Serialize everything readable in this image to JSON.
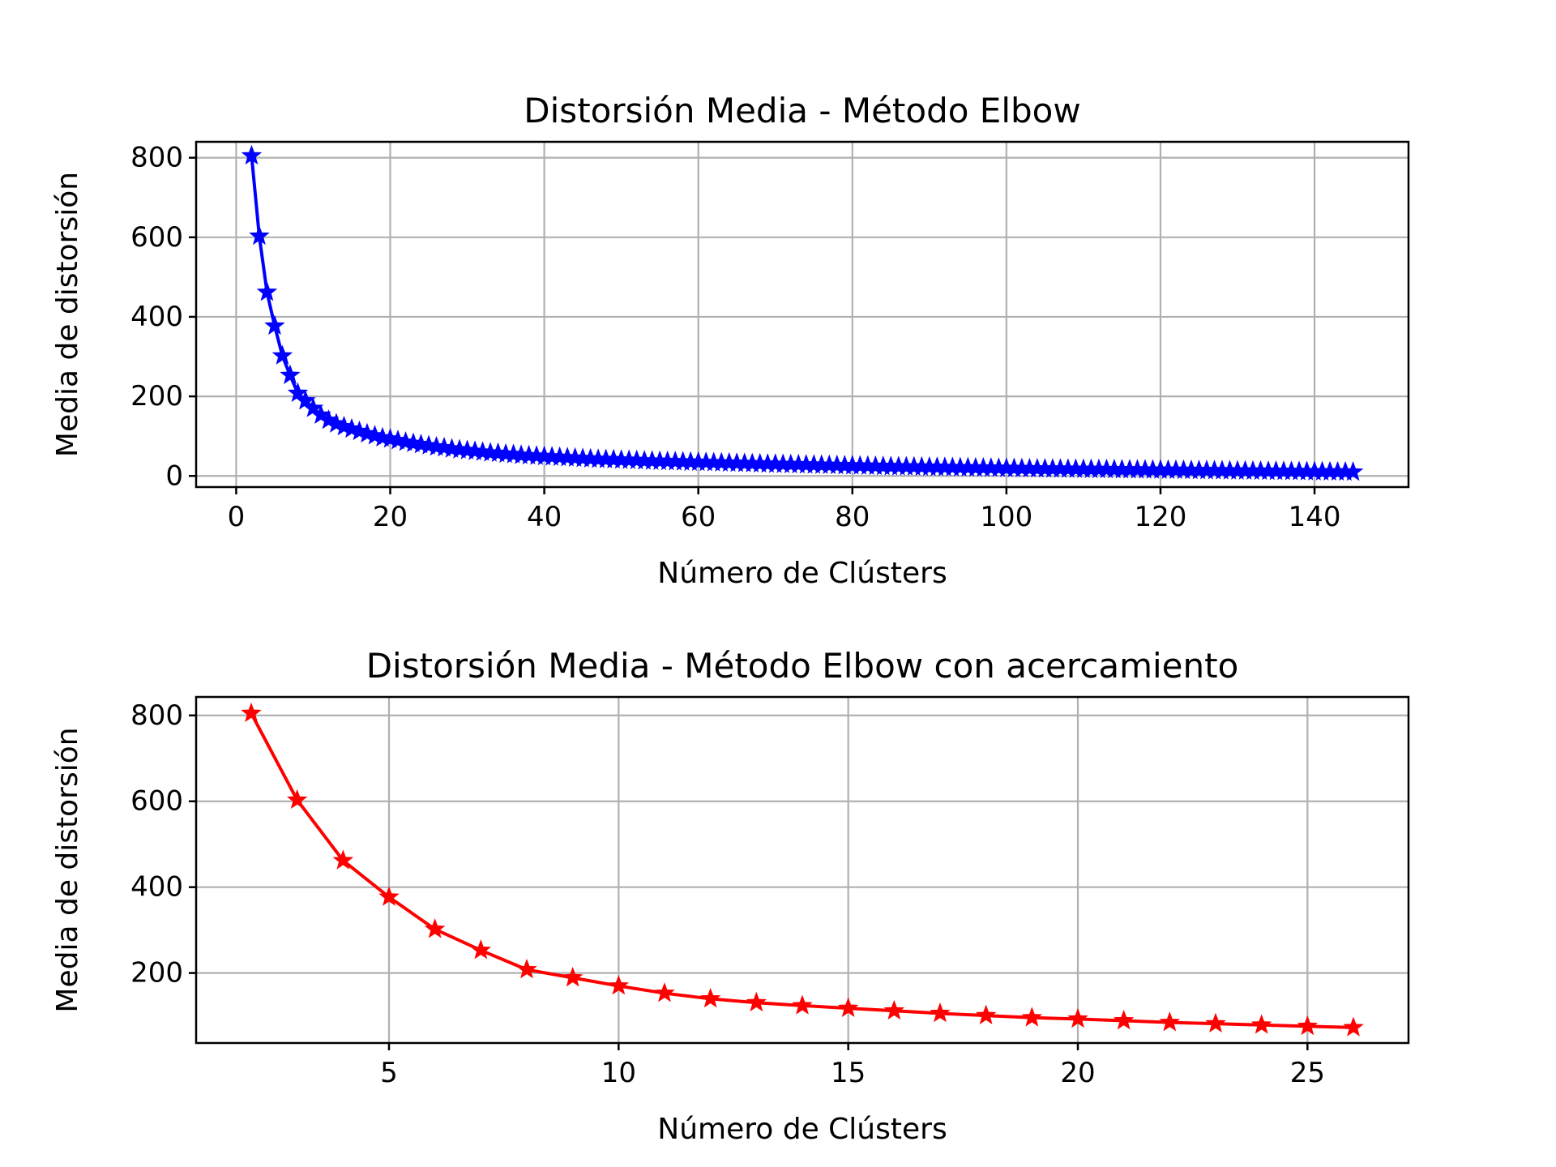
{
  "chart_data": [
    {
      "type": "line",
      "title": "Distorsión Media - Método Elbow",
      "xlabel": "Número de Clústers",
      "ylabel": "Media de distorsión",
      "xlim": [
        -5.2,
        152.2
      ],
      "ylim": [
        -28,
        840
      ],
      "xticks": [
        0,
        20,
        40,
        60,
        80,
        100,
        120,
        140
      ],
      "yticks": [
        0,
        200,
        400,
        600,
        800
      ],
      "grid": true,
      "color": "#0000ff",
      "marker": "star",
      "series": [
        {
          "x": [
            2,
            3,
            4,
            5,
            6,
            7,
            8,
            9,
            10,
            11,
            12,
            13,
            14,
            15,
            16,
            17,
            18,
            19,
            20,
            21,
            22,
            23,
            24,
            25,
            26,
            27,
            28,
            29,
            30,
            31,
            32,
            33,
            34,
            35,
            36,
            37,
            38,
            39,
            40,
            41,
            42,
            43,
            44,
            45,
            46,
            47,
            48,
            49,
            50,
            51,
            52,
            53,
            54,
            55,
            56,
            57,
            58,
            59,
            60,
            61,
            62,
            63,
            64,
            65,
            66,
            67,
            68,
            69,
            70,
            71,
            72,
            73,
            74,
            75,
            76,
            77,
            78,
            79,
            80,
            81,
            82,
            83,
            84,
            85,
            86,
            87,
            88,
            89,
            90,
            91,
            92,
            93,
            94,
            95,
            96,
            97,
            98,
            99,
            100,
            101,
            102,
            103,
            104,
            105,
            106,
            107,
            108,
            109,
            110,
            111,
            112,
            113,
            114,
            115,
            116,
            117,
            118,
            119,
            120,
            121,
            122,
            123,
            124,
            125,
            126,
            127,
            128,
            129,
            130,
            131,
            132,
            133,
            134,
            135,
            136,
            137,
            138,
            139,
            140,
            141,
            142,
            143,
            144,
            145
          ],
          "y": [
            805,
            603,
            462,
            377,
            302,
            253,
            208,
            189,
            170,
            153,
            140,
            131,
            124,
            118,
            112,
            106,
            101,
            96,
            93,
            89,
            85,
            82,
            79,
            76,
            73,
            71,
            68,
            66,
            64,
            62,
            60,
            58,
            57,
            55,
            54,
            52,
            51,
            50,
            49,
            48,
            47,
            46,
            45,
            44,
            43,
            42,
            41.5,
            41,
            40,
            39.5,
            39,
            38,
            37.5,
            37,
            36.5,
            36,
            35.5,
            35,
            34.5,
            34,
            33.5,
            33,
            32.5,
            32,
            31.5,
            31,
            30.5,
            30,
            29.6,
            29.2,
            28.8,
            28.4,
            28,
            27.6,
            27.2,
            26.8,
            26.4,
            26,
            25.6,
            25.2,
            24.8,
            24.4,
            24,
            23.7,
            23.4,
            23.1,
            22.8,
            22.5,
            22.2,
            21.9,
            21.6,
            21.3,
            21,
            20.7,
            20.4,
            20.1,
            19.8,
            19.5,
            19.2,
            18.9,
            18.6,
            18.3,
            18,
            17.8,
            17.6,
            17.4,
            17.2,
            17,
            16.8,
            16.6,
            16.4,
            16.2,
            16,
            15.8,
            15.6,
            15.4,
            15.2,
            15,
            14.8,
            14.6,
            14.4,
            14.2,
            14,
            13.8,
            13.6,
            13.4,
            13.2,
            13,
            12.8,
            12.6,
            12.4,
            12.2,
            12,
            11.8,
            11.6,
            11.4,
            11.2,
            11,
            10.8,
            10.6,
            10.4,
            10.2,
            10,
            9.8
          ]
        }
      ]
    },
    {
      "type": "line",
      "title": "Distorsión Media - Método Elbow con acercamiento",
      "xlabel": "Número de Clústers",
      "ylabel": "Media de distorsión",
      "xlim": [
        0.8,
        27.2
      ],
      "ylim": [
        37,
        843
      ],
      "xticks": [
        5,
        10,
        15,
        20,
        25
      ],
      "yticks": [
        200,
        400,
        600,
        800
      ],
      "grid": true,
      "color": "#ff0000",
      "marker": "star",
      "series": [
        {
          "x": [
            2,
            3,
            4,
            5,
            6,
            7,
            8,
            9,
            10,
            11,
            12,
            13,
            14,
            15,
            16,
            17,
            18,
            19,
            20,
            21,
            22,
            23,
            24,
            25,
            26
          ],
          "y": [
            805,
            603,
            462,
            377,
            302,
            253,
            208,
            189,
            170,
            153,
            140,
            131,
            124,
            118,
            112,
            106,
            101,
            96,
            93,
            89,
            85,
            82,
            79,
            76,
            73
          ]
        }
      ]
    }
  ]
}
